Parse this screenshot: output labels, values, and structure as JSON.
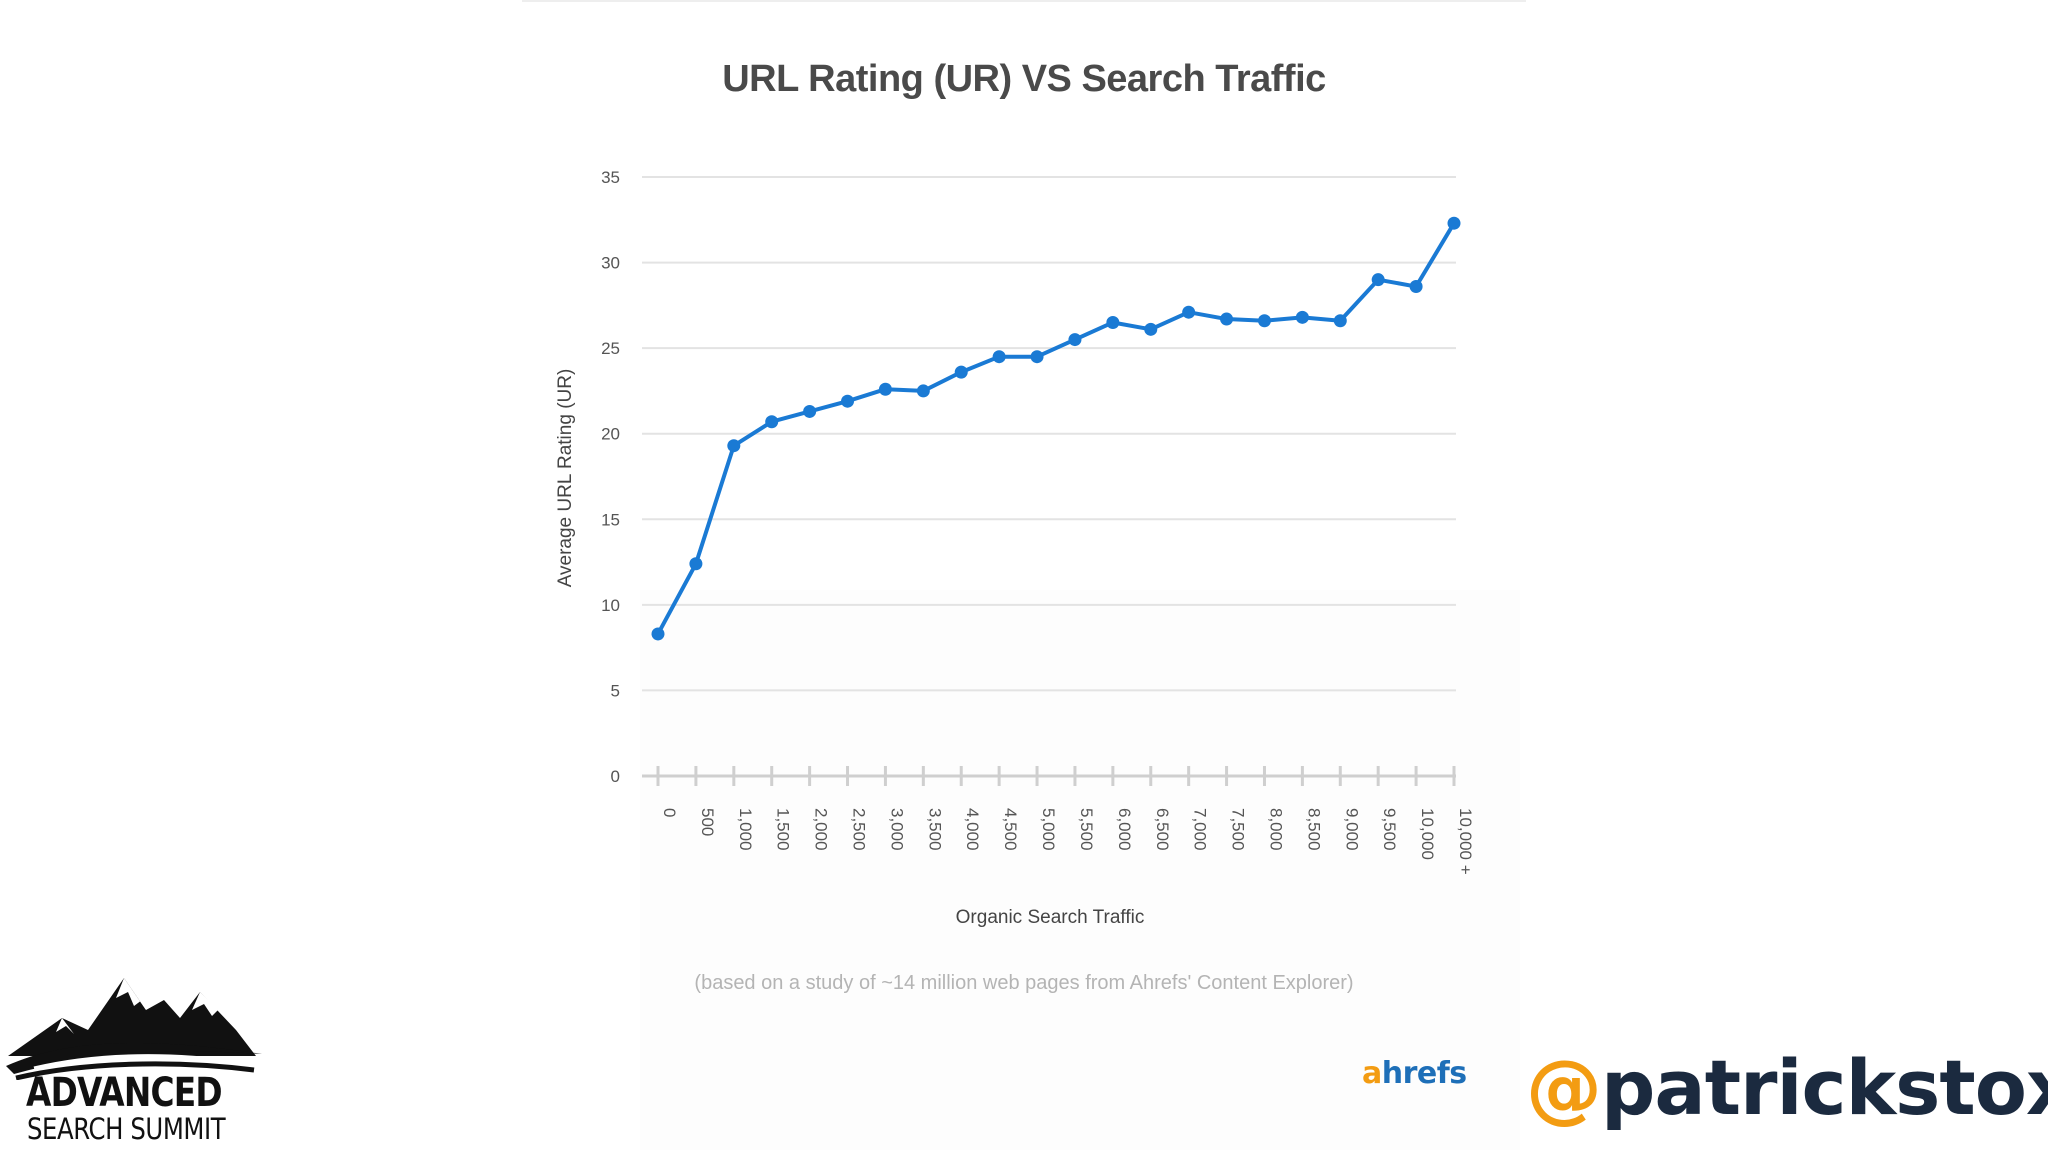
{
  "chart_data": {
    "type": "line",
    "title": "URL Rating (UR) VS Search Traffic",
    "xlabel": "Organic Search Traffic",
    "ylabel": "Average URL Rating (UR)",
    "categories": [
      "0",
      "500",
      "1,000",
      "1,500",
      "2,000",
      "2,500",
      "3,000",
      "3,500",
      "4,000",
      "4,500",
      "5,000",
      "5,500",
      "6,000",
      "6,500",
      "7,000",
      "7,500",
      "8,000",
      "8,500",
      "9,000",
      "9,500",
      "10,000",
      "10,000 +"
    ],
    "values": [
      8.3,
      12.4,
      19.3,
      20.7,
      21.3,
      21.9,
      22.6,
      22.5,
      23.6,
      24.5,
      24.5,
      25.5,
      26.5,
      26.1,
      27.1,
      26.7,
      26.6,
      26.8,
      26.6,
      29.0,
      28.6,
      32.3
    ],
    "ylim": [
      0,
      35
    ],
    "yticks": [
      0,
      5,
      10,
      15,
      20,
      25,
      30,
      35
    ],
    "grid": true,
    "legend": "none",
    "line_color": "#1a7ad4",
    "note": "(based on a study of ~14 million web pages from Ahrefs' Content Explorer)"
  },
  "branding": {
    "ahrefs_a": "a",
    "ahrefs_rest": "hrefs",
    "summit_line1": "ADVANCED",
    "summit_line2": "SEARCH SUMMIT",
    "handle_at": "@",
    "handle_name": "patrickstox"
  },
  "colors": {
    "accent_orange": "#f39c12",
    "ahrefs_blue": "#1e6fb8",
    "handle_dark": "#1b2a3f"
  }
}
